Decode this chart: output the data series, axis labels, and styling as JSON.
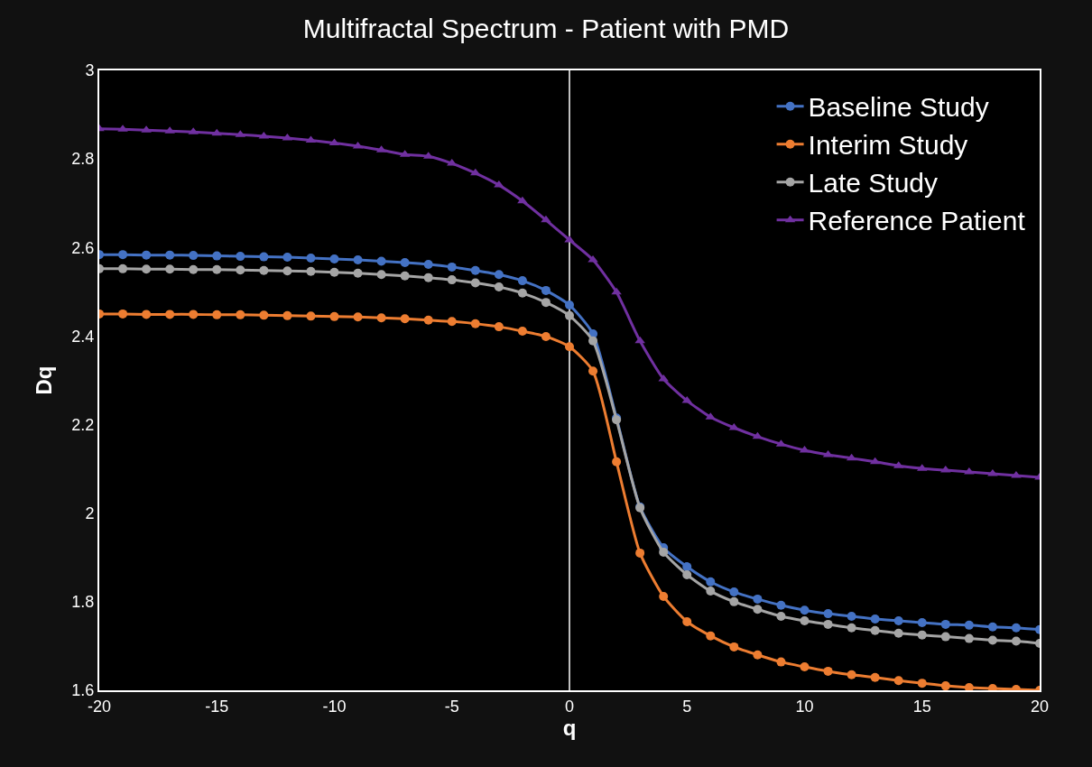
{
  "chart_data": {
    "type": "line",
    "title": "Multifractal Spectrum - Patient with PMD",
    "xlabel": "q",
    "ylabel": "Dq",
    "x": [
      -20,
      -19,
      -18,
      -17,
      -16,
      -15,
      -14,
      -13,
      -12,
      -11,
      -10,
      -9,
      -8,
      -7,
      -6,
      -5,
      -4,
      -3,
      -2,
      -1,
      0,
      1,
      2,
      3,
      4,
      5,
      6,
      7,
      8,
      9,
      10,
      11,
      12,
      13,
      14,
      15,
      16,
      17,
      18,
      19,
      20
    ],
    "series": [
      {
        "name": "Baseline Study",
        "color": "#4472c4",
        "marker": "circle",
        "values": [
          2.584,
          2.584,
          2.583,
          2.583,
          2.582,
          2.581,
          2.58,
          2.579,
          2.578,
          2.576,
          2.574,
          2.572,
          2.569,
          2.566,
          2.562,
          2.556,
          2.548,
          2.539,
          2.525,
          2.503,
          2.47,
          2.405,
          2.215,
          2.014,
          1.922,
          1.879,
          1.845,
          1.822,
          1.806,
          1.792,
          1.781,
          1.773,
          1.767,
          1.761,
          1.757,
          1.753,
          1.749,
          1.747,
          1.743,
          1.741,
          1.737
        ]
      },
      {
        "name": "Interim Study",
        "color": "#ed7d31",
        "marker": "circle",
        "values": [
          2.45,
          2.45,
          2.449,
          2.449,
          2.449,
          2.448,
          2.448,
          2.447,
          2.446,
          2.445,
          2.444,
          2.443,
          2.441,
          2.439,
          2.436,
          2.433,
          2.428,
          2.421,
          2.411,
          2.399,
          2.376,
          2.321,
          2.116,
          1.91,
          1.812,
          1.755,
          1.723,
          1.698,
          1.68,
          1.664,
          1.653,
          1.643,
          1.635,
          1.629,
          1.622,
          1.616,
          1.61,
          1.606,
          1.604,
          1.602,
          1.6
        ]
      },
      {
        "name": "Late Study",
        "color": "#a5a5a5",
        "marker": "circle",
        "values": [
          2.552,
          2.552,
          2.551,
          2.551,
          2.55,
          2.55,
          2.549,
          2.548,
          2.547,
          2.546,
          2.544,
          2.542,
          2.539,
          2.536,
          2.532,
          2.527,
          2.52,
          2.511,
          2.497,
          2.476,
          2.446,
          2.389,
          2.211,
          2.012,
          1.912,
          1.861,
          1.824,
          1.8,
          1.783,
          1.767,
          1.757,
          1.749,
          1.741,
          1.735,
          1.729,
          1.725,
          1.721,
          1.717,
          1.713,
          1.711,
          1.706
        ]
      },
      {
        "name": "Reference Patient",
        "color": "#7030a0",
        "marker": "triangle",
        "values": [
          2.868,
          2.867,
          2.865,
          2.863,
          2.861,
          2.858,
          2.855,
          2.851,
          2.847,
          2.842,
          2.836,
          2.829,
          2.82,
          2.81,
          2.806,
          2.79,
          2.768,
          2.741,
          2.705,
          2.662,
          2.617,
          2.572,
          2.499,
          2.389,
          2.303,
          2.254,
          2.217,
          2.193,
          2.173,
          2.156,
          2.142,
          2.132,
          2.124,
          2.116,
          2.107,
          2.101,
          2.097,
          2.093,
          2.089,
          2.085,
          2.081
        ]
      }
    ],
    "xlim": [
      -20,
      20
    ],
    "xticks": [
      -20,
      -15,
      -10,
      -5,
      0,
      5,
      10,
      15,
      20
    ],
    "ylim": [
      1.6,
      3
    ],
    "yticks": [
      1.6,
      1.8,
      2,
      2.2,
      2.4,
      2.6,
      2.8,
      3
    ],
    "ref_lines": [
      {
        "axis": "x",
        "value": 0,
        "color": "#ffffff"
      }
    ],
    "grid": false,
    "legend": "top right",
    "line_style": "solid"
  }
}
